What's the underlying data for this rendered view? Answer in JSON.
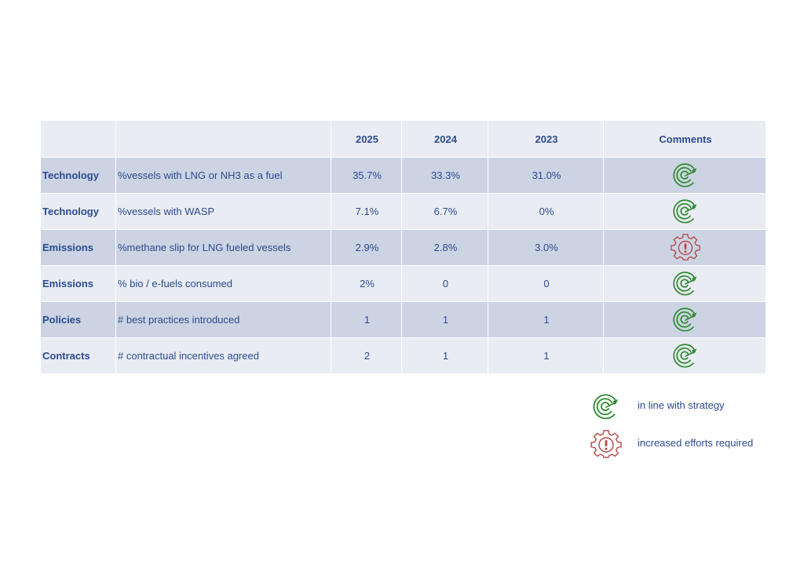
{
  "table": {
    "headers": [
      "",
      "",
      "2025",
      "2024",
      "2023",
      "Comments"
    ],
    "rows": [
      {
        "category": "Technology",
        "kpi": "%vessels with LNG or NH3 as a fuel",
        "y2025": "35.7%",
        "y2024": "33.3%",
        "y2023": "31.0%",
        "comment_icon": "target-icon"
      },
      {
        "category": "Technology",
        "kpi": "%vessels with WASP",
        "y2025": "7.1%",
        "y2024": "6.7%",
        "y2023": "0%",
        "comment_icon": "target-icon"
      },
      {
        "category": "Emissions",
        "kpi": "%methane slip for LNG fueled vessels",
        "y2025": "2.9%",
        "y2024": "2.8%",
        "y2023": "3.0%",
        "comment_icon": "gear-warning-icon"
      },
      {
        "category": "Emissions",
        "kpi": "% bio / e-fuels consumed",
        "y2025": "2%",
        "y2024": "0",
        "y2023": "0",
        "comment_icon": "target-icon"
      },
      {
        "category": "Policies",
        "kpi": "# best practices introduced",
        "y2025": "1",
        "y2024": "1",
        "y2023": "1",
        "comment_icon": "target-icon"
      },
      {
        "category": "Contracts",
        "kpi": "# contractual incentives agreed",
        "y2025": "2",
        "y2024": "1",
        "y2023": "1",
        "comment_icon": "target-icon"
      }
    ]
  },
  "legend": {
    "on_track_label": "in line with strategy",
    "on_track_icon": "target-icon",
    "on_track_color": "#2e8b2e",
    "warning_label": "increased efforts required",
    "warning_icon": "gear-warning-icon",
    "warning_color": "#b5473f"
  },
  "colors": {
    "text": "#2c4a8e",
    "row_dark": "#ccd3e3",
    "row_light": "#e9ecf3"
  }
}
